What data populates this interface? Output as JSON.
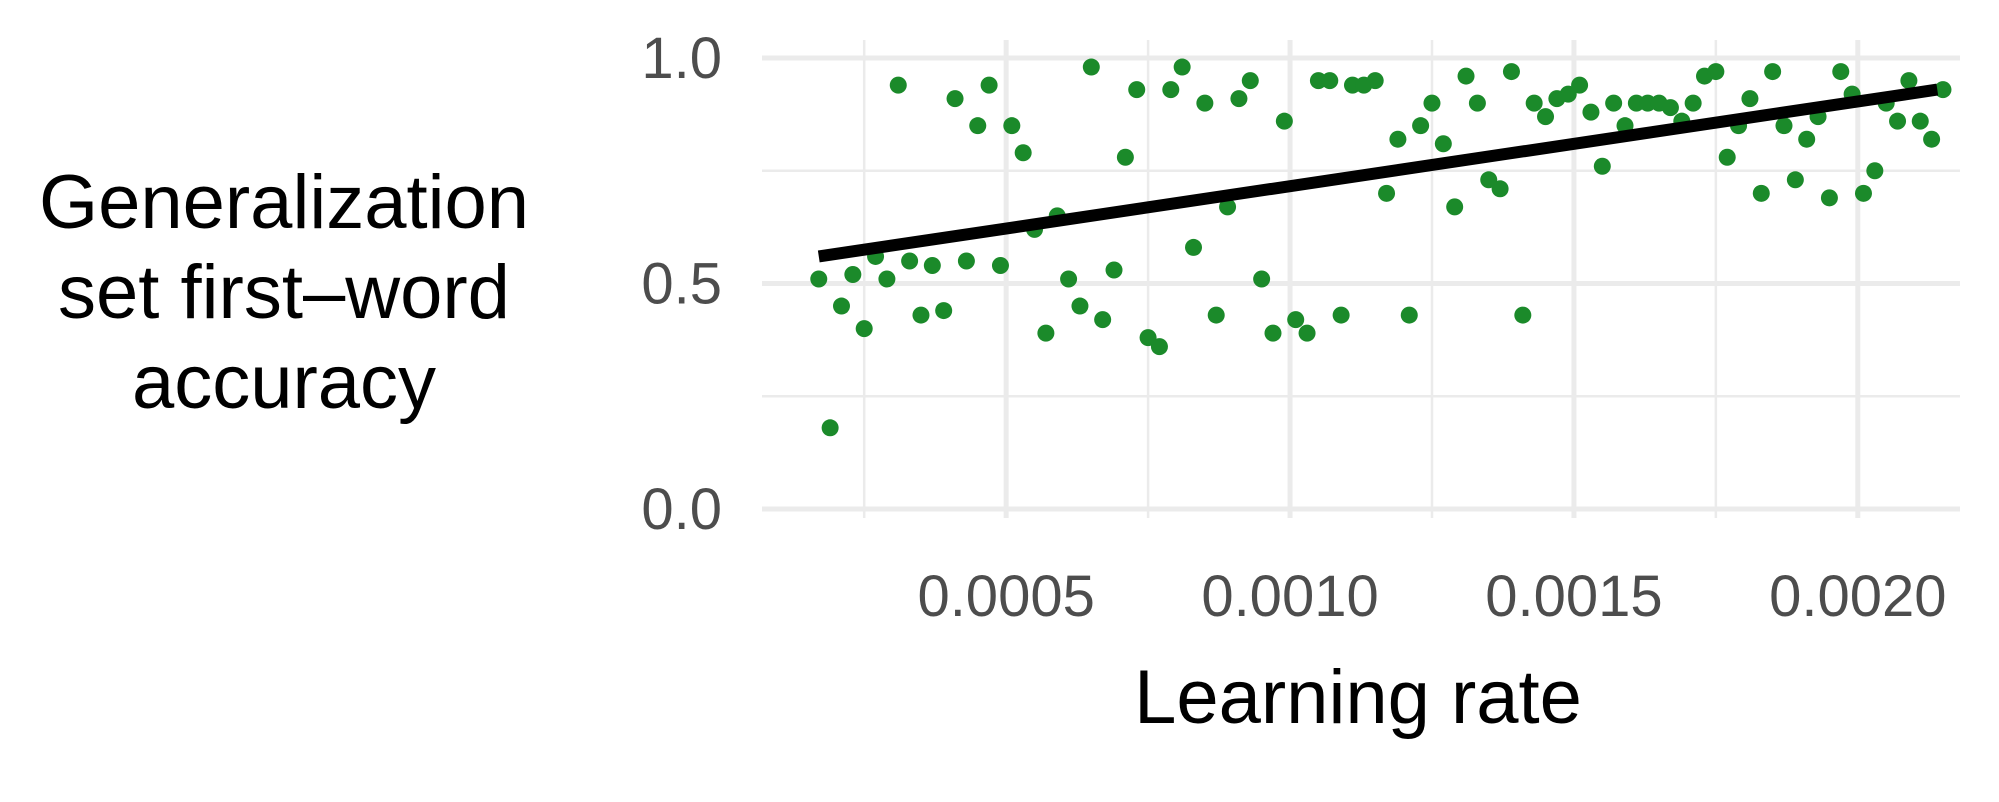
{
  "chart_data": {
    "type": "scatter",
    "title": "",
    "xlabel": "Learning rate",
    "ylabel_lines": [
      "Generalization",
      "set first–word",
      "accuracy"
    ],
    "xlim": [
      7e-05,
      0.00218
    ],
    "ylim": [
      -0.02,
      1.04
    ],
    "x_ticks": [
      0.0005,
      0.001,
      0.0015,
      0.002
    ],
    "x_tick_labels": [
      "0.0005",
      "0.0010",
      "0.0015",
      "0.0020"
    ],
    "y_ticks": [
      0.0,
      0.5,
      1.0
    ],
    "y_tick_labels": [
      "0.0",
      "0.5",
      "1.0"
    ],
    "grid": true,
    "point_color": "#1b8a2a",
    "trend_line": {
      "color": "#000000",
      "x": [
        0.00017,
        0.00214
      ],
      "y": [
        0.56,
        0.93
      ]
    },
    "points": [
      {
        "x": 0.00017,
        "y": 0.51
      },
      {
        "x": 0.00019,
        "y": 0.18
      },
      {
        "x": 0.00021,
        "y": 0.45
      },
      {
        "x": 0.00023,
        "y": 0.52
      },
      {
        "x": 0.00025,
        "y": 0.4
      },
      {
        "x": 0.00027,
        "y": 0.56
      },
      {
        "x": 0.00029,
        "y": 0.51
      },
      {
        "x": 0.00031,
        "y": 0.94
      },
      {
        "x": 0.00033,
        "y": 0.55
      },
      {
        "x": 0.00035,
        "y": 0.43
      },
      {
        "x": 0.00037,
        "y": 0.54
      },
      {
        "x": 0.00039,
        "y": 0.44
      },
      {
        "x": 0.00041,
        "y": 0.91
      },
      {
        "x": 0.00043,
        "y": 0.55
      },
      {
        "x": 0.00045,
        "y": 0.85
      },
      {
        "x": 0.00047,
        "y": 0.94
      },
      {
        "x": 0.00049,
        "y": 0.54
      },
      {
        "x": 0.00051,
        "y": 0.85
      },
      {
        "x": 0.00053,
        "y": 0.79
      },
      {
        "x": 0.00055,
        "y": 0.62
      },
      {
        "x": 0.00057,
        "y": 0.39
      },
      {
        "x": 0.00059,
        "y": 0.65
      },
      {
        "x": 0.00061,
        "y": 0.51
      },
      {
        "x": 0.00063,
        "y": 0.45
      },
      {
        "x": 0.00065,
        "y": 0.98
      },
      {
        "x": 0.00067,
        "y": 0.42
      },
      {
        "x": 0.00069,
        "y": 0.53
      },
      {
        "x": 0.00071,
        "y": 0.78
      },
      {
        "x": 0.00073,
        "y": 0.93
      },
      {
        "x": 0.00075,
        "y": 0.38
      },
      {
        "x": 0.00077,
        "y": 0.36
      },
      {
        "x": 0.00079,
        "y": 0.93
      },
      {
        "x": 0.00081,
        "y": 0.98
      },
      {
        "x": 0.00083,
        "y": 0.58
      },
      {
        "x": 0.00085,
        "y": 0.9
      },
      {
        "x": 0.00087,
        "y": 0.43
      },
      {
        "x": 0.00089,
        "y": 0.67
      },
      {
        "x": 0.00091,
        "y": 0.91
      },
      {
        "x": 0.00093,
        "y": 0.95
      },
      {
        "x": 0.00095,
        "y": 0.51
      },
      {
        "x": 0.00097,
        "y": 0.39
      },
      {
        "x": 0.00099,
        "y": 0.86
      },
      {
        "x": 0.00101,
        "y": 0.42
      },
      {
        "x": 0.00103,
        "y": 0.39
      },
      {
        "x": 0.00105,
        "y": 0.95
      },
      {
        "x": 0.00107,
        "y": 0.95
      },
      {
        "x": 0.00109,
        "y": 0.43
      },
      {
        "x": 0.00111,
        "y": 0.94
      },
      {
        "x": 0.00113,
        "y": 0.94
      },
      {
        "x": 0.00115,
        "y": 0.95
      },
      {
        "x": 0.00117,
        "y": 0.7
      },
      {
        "x": 0.00119,
        "y": 0.82
      },
      {
        "x": 0.00121,
        "y": 0.43
      },
      {
        "x": 0.00123,
        "y": 0.85
      },
      {
        "x": 0.00125,
        "y": 0.9
      },
      {
        "x": 0.00127,
        "y": 0.81
      },
      {
        "x": 0.00129,
        "y": 0.67
      },
      {
        "x": 0.00131,
        "y": 0.96
      },
      {
        "x": 0.00133,
        "y": 0.9
      },
      {
        "x": 0.00135,
        "y": 0.73
      },
      {
        "x": 0.00137,
        "y": 0.71
      },
      {
        "x": 0.00139,
        "y": 0.97
      },
      {
        "x": 0.00141,
        "y": 0.43
      },
      {
        "x": 0.00143,
        "y": 0.9
      },
      {
        "x": 0.00145,
        "y": 0.87
      },
      {
        "x": 0.00147,
        "y": 0.91
      },
      {
        "x": 0.00149,
        "y": 0.92
      },
      {
        "x": 0.00151,
        "y": 0.94
      },
      {
        "x": 0.00153,
        "y": 0.88
      },
      {
        "x": 0.00155,
        "y": 0.76
      },
      {
        "x": 0.00157,
        "y": 0.9
      },
      {
        "x": 0.00159,
        "y": 0.85
      },
      {
        "x": 0.00161,
        "y": 0.9
      },
      {
        "x": 0.00163,
        "y": 0.9
      },
      {
        "x": 0.00165,
        "y": 0.9
      },
      {
        "x": 0.00167,
        "y": 0.89
      },
      {
        "x": 0.00169,
        "y": 0.86
      },
      {
        "x": 0.00171,
        "y": 0.9
      },
      {
        "x": 0.00173,
        "y": 0.96
      },
      {
        "x": 0.00175,
        "y": 0.97
      },
      {
        "x": 0.00177,
        "y": 0.78
      },
      {
        "x": 0.00179,
        "y": 0.85
      },
      {
        "x": 0.00181,
        "y": 0.91
      },
      {
        "x": 0.00183,
        "y": 0.7
      },
      {
        "x": 0.00185,
        "y": 0.97
      },
      {
        "x": 0.00187,
        "y": 0.85
      },
      {
        "x": 0.00189,
        "y": 0.73
      },
      {
        "x": 0.00191,
        "y": 0.82
      },
      {
        "x": 0.00193,
        "y": 0.87
      },
      {
        "x": 0.00195,
        "y": 0.69
      },
      {
        "x": 0.00197,
        "y": 0.97
      },
      {
        "x": 0.00199,
        "y": 0.92
      },
      {
        "x": 0.00201,
        "y": 0.7
      },
      {
        "x": 0.00203,
        "y": 0.75
      },
      {
        "x": 0.00205,
        "y": 0.9
      },
      {
        "x": 0.00207,
        "y": 0.86
      },
      {
        "x": 0.00209,
        "y": 0.95
      },
      {
        "x": 0.00211,
        "y": 0.86
      },
      {
        "x": 0.00213,
        "y": 0.82
      },
      {
        "x": 0.00215,
        "y": 0.93
      }
    ]
  }
}
